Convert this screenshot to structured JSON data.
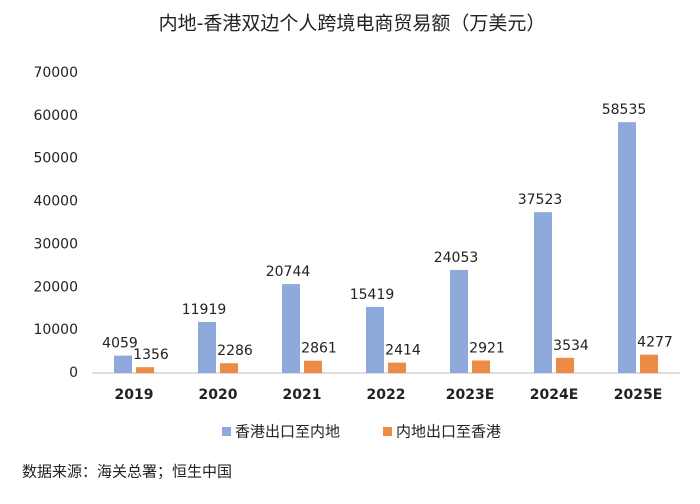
{
  "chart_data": {
    "type": "bar",
    "title": "内地-香港双边个人跨境电商贸易额（万美元）",
    "categories": [
      "2019",
      "2020",
      "2021",
      "2022",
      "2023E",
      "2024E",
      "2025E"
    ],
    "series": [
      {
        "name": "香港出口至内地",
        "color": "#8eaadb",
        "values": [
          4059,
          11919,
          20744,
          15419,
          24053,
          37523,
          58535
        ]
      },
      {
        "name": "内地出口至香港",
        "color": "#ed8b45",
        "values": [
          1356,
          2286,
          2861,
          2414,
          2921,
          3534,
          4277
        ]
      }
    ],
    "ylim": [
      0,
      70000
    ],
    "yticks": [
      0,
      10000,
      20000,
      30000,
      40000,
      50000,
      60000,
      70000
    ],
    "grid": false,
    "legend": "bottom",
    "source": "数据来源：海关总署；恒生中国"
  }
}
